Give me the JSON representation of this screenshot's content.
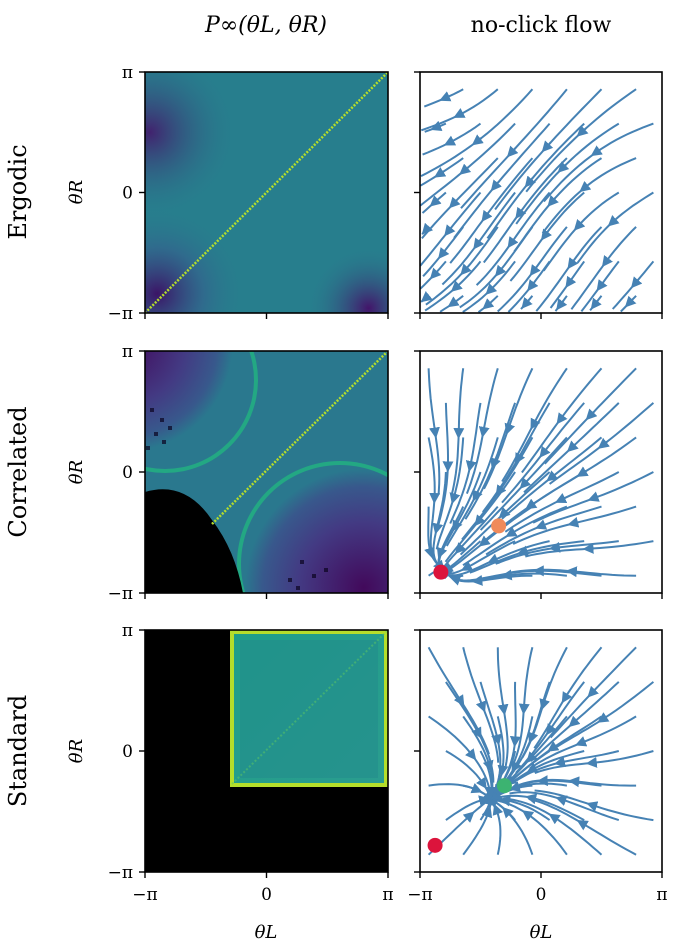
{
  "chart_data": {
    "type": "heatmap",
    "col_titles": [
      "P∞(θL, θR)",
      "no-click flow"
    ],
    "row_labels": [
      "Ergodic",
      "Correlated",
      "Standard"
    ],
    "ylabel": "θR",
    "xlabel": "θL",
    "ticks": {
      "labels": [
        "−π",
        "0",
        "π"
      ],
      "values": [
        -3.14159,
        0,
        3.14159
      ],
      "y_show_on": "left-column",
      "x_show_on": "bottom-row"
    },
    "xlim": [
      -3.14159,
      3.14159
    ],
    "ylim": [
      -3.14159,
      3.14159
    ],
    "colormap": "viridis",
    "stream_color": "#4682b4",
    "fixed_points": [
      {
        "panel": "Correlated",
        "x": -2.6,
        "y": -2.6,
        "color": "#dc143c"
      },
      {
        "panel": "Correlated",
        "x": -1.1,
        "y": -1.4,
        "color": "#f08a5a"
      },
      {
        "panel": "Standard",
        "x": -2.75,
        "y": -2.45,
        "color": "#dc143c"
      },
      {
        "panel": "Standard",
        "x": -0.95,
        "y": -0.9,
        "color": "#3cb371"
      }
    ]
  }
}
